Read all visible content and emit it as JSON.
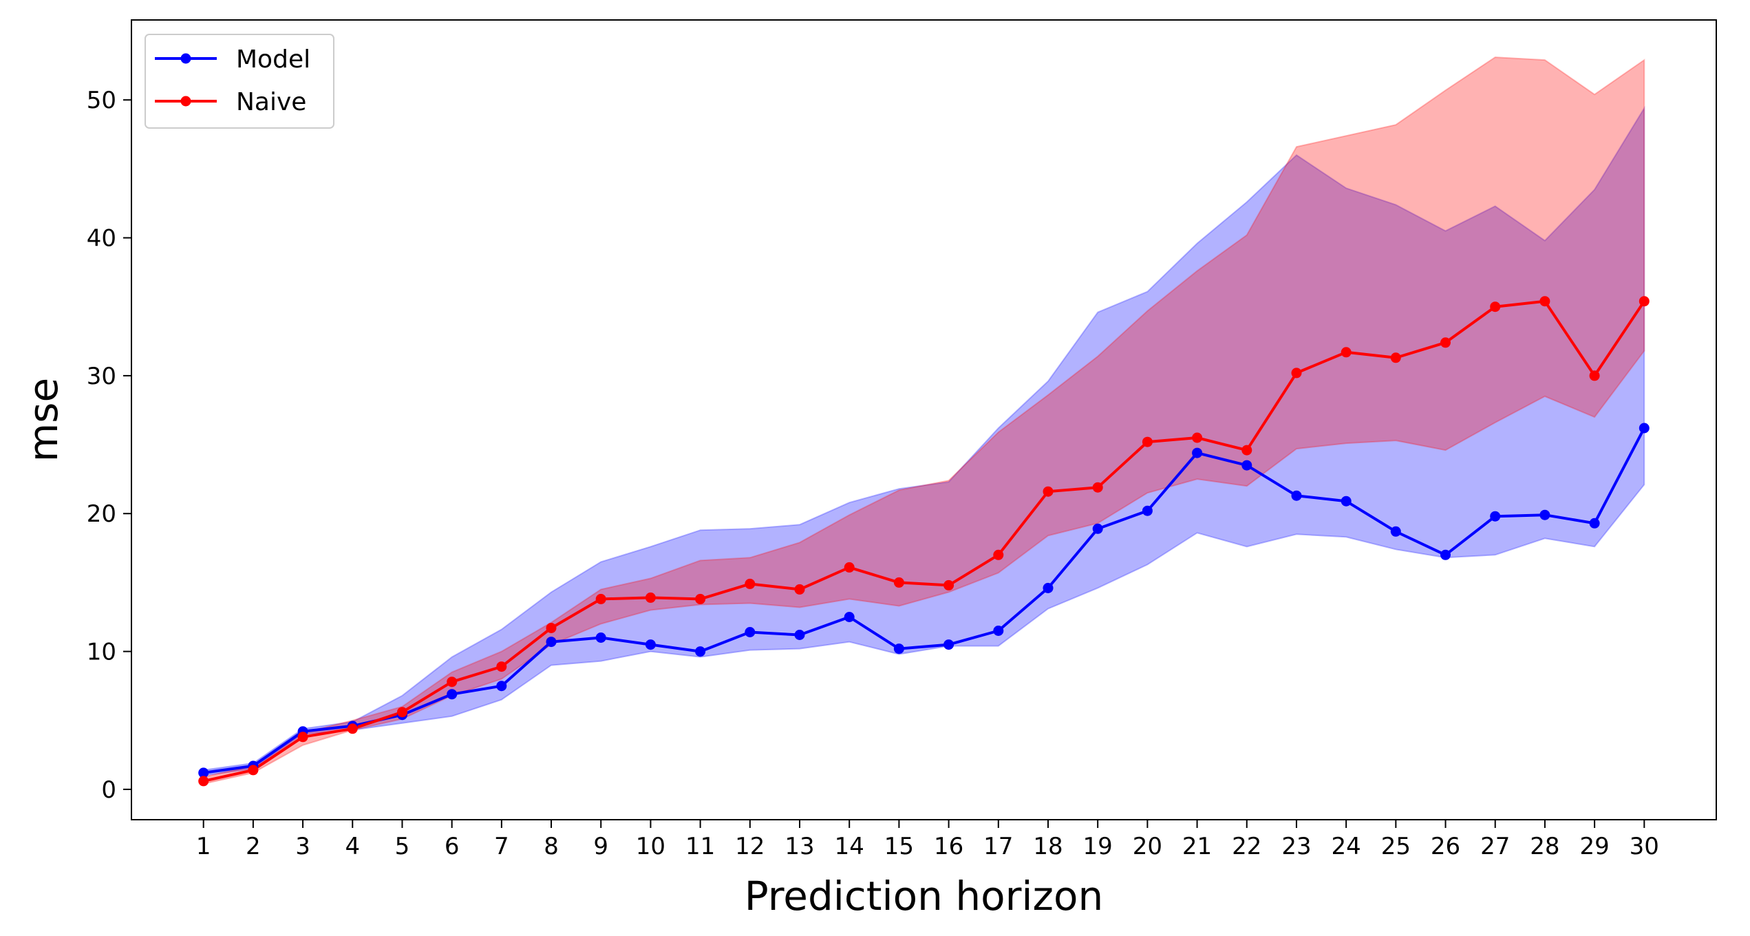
{
  "chart_data": {
    "type": "line",
    "title": "",
    "xlabel": "Prediction horizon",
    "ylabel": "mse",
    "x": [
      1,
      2,
      3,
      4,
      5,
      6,
      7,
      8,
      9,
      10,
      11,
      12,
      13,
      14,
      15,
      16,
      17,
      18,
      19,
      20,
      21,
      22,
      23,
      24,
      25,
      26,
      27,
      28,
      29,
      30
    ],
    "xticks": [
      "1",
      "2",
      "3",
      "4",
      "5",
      "6",
      "7",
      "8",
      "9",
      "10",
      "11",
      "12",
      "13",
      "14",
      "15",
      "16",
      "17",
      "18",
      "19",
      "20",
      "21",
      "22",
      "23",
      "24",
      "25",
      "26",
      "27",
      "28",
      "29",
      "30"
    ],
    "xlim": [
      -0.45,
      31.45
    ],
    "ylim": [
      -2.2,
      55.8
    ],
    "yticks": [
      0,
      10,
      20,
      30,
      40,
      50
    ],
    "grid": false,
    "legend_position": "top-left",
    "series": [
      {
        "name": "Model",
        "color": "#0000ff",
        "band_color": "#0000ff",
        "band_opacity": 0.3,
        "values": [
          1.2,
          1.7,
          4.2,
          4.6,
          5.4,
          6.9,
          7.5,
          10.7,
          11.0,
          10.5,
          10.0,
          11.4,
          11.2,
          12.5,
          10.2,
          10.5,
          11.5,
          14.6,
          18.9,
          20.2,
          24.4,
          23.5,
          21.3,
          20.9,
          18.7,
          17.0,
          19.8,
          19.9,
          19.3,
          26.2
        ],
        "upper": [
          1.4,
          1.9,
          4.4,
          4.9,
          6.8,
          9.6,
          11.6,
          14.3,
          16.5,
          17.6,
          18.8,
          18.9,
          19.2,
          20.8,
          21.8,
          22.3,
          26.2,
          29.6,
          34.6,
          36.1,
          39.6,
          42.6,
          46.0,
          43.6,
          42.4,
          40.5,
          42.3,
          39.8,
          43.5,
          49.4
        ],
        "lower": [
          1.0,
          1.5,
          4.0,
          4.3,
          4.8,
          5.3,
          6.5,
          9.0,
          9.3,
          10.0,
          9.6,
          10.1,
          10.2,
          10.7,
          9.8,
          10.4,
          10.4,
          13.1,
          14.6,
          16.3,
          18.6,
          17.6,
          18.5,
          18.3,
          17.4,
          16.8,
          17.0,
          18.2,
          17.6,
          22.1
        ]
      },
      {
        "name": "Naive",
        "color": "#ff0000",
        "band_color": "#ff0000",
        "band_opacity": 0.3,
        "values": [
          0.6,
          1.4,
          3.8,
          4.4,
          5.6,
          7.8,
          8.9,
          11.7,
          13.8,
          13.9,
          13.8,
          14.9,
          14.5,
          16.1,
          15.0,
          14.8,
          17.0,
          21.6,
          21.9,
          25.2,
          25.5,
          24.6,
          30.2,
          31.7,
          31.3,
          32.4,
          35.0,
          35.4,
          30.0,
          35.4
        ],
        "upper": [
          0.9,
          1.7,
          4.1,
          5.0,
          6.0,
          8.5,
          10.0,
          12.1,
          14.5,
          15.3,
          16.6,
          16.8,
          17.9,
          19.9,
          21.7,
          22.4,
          25.9,
          28.6,
          31.4,
          34.7,
          37.6,
          40.2,
          46.6,
          47.4,
          48.2,
          50.7,
          53.1,
          52.9,
          50.4,
          52.9
        ],
        "lower": [
          0.4,
          1.2,
          3.2,
          4.3,
          5.1,
          6.8,
          8.0,
          10.5,
          12.0,
          13.0,
          13.4,
          13.5,
          13.2,
          13.8,
          13.3,
          14.3,
          15.7,
          18.4,
          19.3,
          21.5,
          22.5,
          22.0,
          24.7,
          25.1,
          25.3,
          24.6,
          26.6,
          28.5,
          27.0,
          31.8
        ]
      }
    ]
  }
}
